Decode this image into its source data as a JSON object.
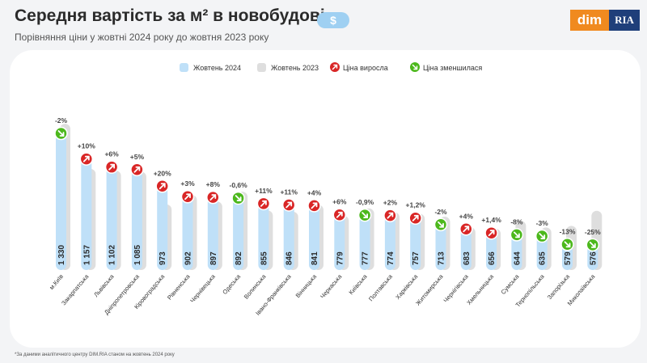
{
  "header": {
    "title": "Середня вартість за м² в новобудові",
    "subtitle": "Порівняння ціни у жовтні 2024 року до жовтня 2023 року",
    "badge": "$"
  },
  "logo": {
    "left": "dim",
    "right": "RIA"
  },
  "legend": {
    "current": "Жовтень 2024",
    "previous": "Жовтень 2023",
    "up": "Ціна виросла",
    "down": "Ціна зменшилася"
  },
  "footnote": "*За даними аналітичного центру DIM.RIA станом на жовтень 2024 року",
  "colors": {
    "current": "#bfe0f8",
    "previous": "#dedede",
    "up": "#d92626",
    "down": "#4cb81c",
    "text": "#2b2b2b"
  },
  "chart_data": {
    "type": "bar",
    "categories": [
      "м.Київ",
      "Закарпатська",
      "Львівська",
      "Дніпропетровська",
      "Кіровоградська",
      "Рівненська",
      "Чернівецька",
      "Одеська",
      "Волинська",
      "Івано-Франківська",
      "Вінницька",
      "Черкаська",
      "Київська",
      "Полтавська",
      "Харківська",
      "Житомирська",
      "Чернігівська",
      "Хмельницька",
      "Сумська",
      "Тернопільська",
      "Запорізька",
      "Миколаївська"
    ],
    "series": [
      {
        "name": "Жовтень 2024",
        "values": [
          1330,
          1157,
          1102,
          1085,
          973,
          902,
          897,
          892,
          855,
          846,
          841,
          779,
          777,
          774,
          757,
          713,
          683,
          656,
          644,
          635,
          579,
          576
        ]
      },
      {
        "name": "Жовтень 2023",
        "values": [
          1357,
          1052,
          1040,
          1033,
          811,
          876,
          831,
          897,
          770,
          762,
          809,
          735,
          784,
          759,
          748,
          728,
          657,
          647,
          700,
          655,
          666,
          768
        ]
      }
    ],
    "value_labels": [
      "1 330",
      "1 157",
      "1 102",
      "1 085",
      "973",
      "902",
      "897",
      "892",
      "855",
      "846",
      "841",
      "779",
      "777",
      "774",
      "757",
      "713",
      "683",
      "656",
      "644",
      "635",
      "579",
      "576"
    ],
    "changes": [
      "-2%",
      "+10%",
      "+6%",
      "+5%",
      "+20%",
      "+3%",
      "+8%",
      "-0,6%",
      "+11%",
      "+11%",
      "+4%",
      "+6%",
      "-0,9%",
      "+2%",
      "+1,2%",
      "-2%",
      "+4%",
      "+1,4%",
      "-8%",
      "-3%",
      "-13%",
      "-25%"
    ],
    "direction": [
      "down",
      "up",
      "up",
      "up",
      "up",
      "up",
      "up",
      "down",
      "up",
      "up",
      "up",
      "up",
      "down",
      "up",
      "up",
      "down",
      "up",
      "up",
      "down",
      "down",
      "down",
      "down"
    ]
  }
}
